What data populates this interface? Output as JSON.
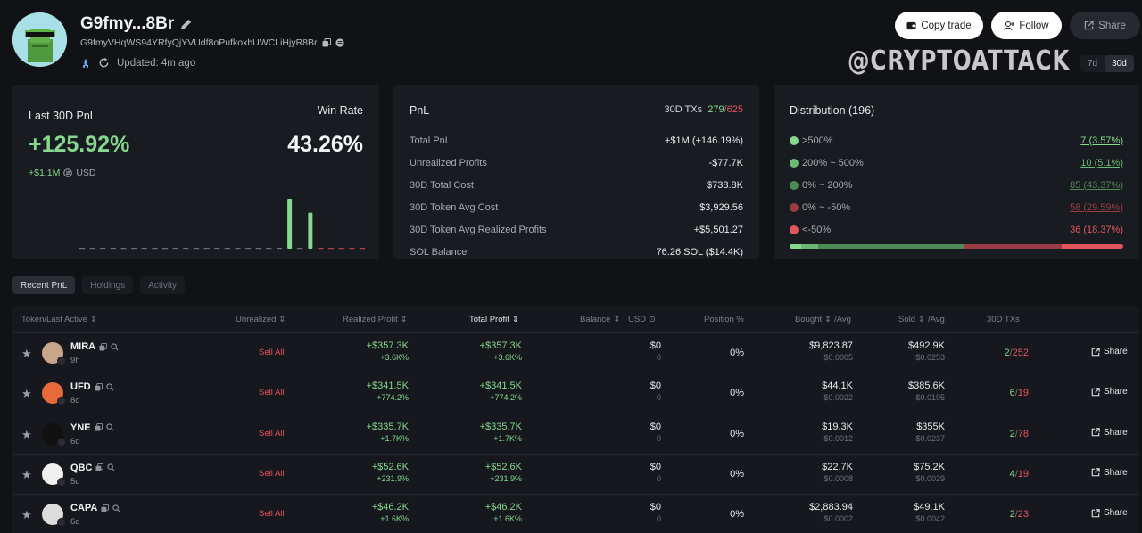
{
  "profile": {
    "display_name": "G9fmy...8Br",
    "address": "G9fmyVHqWS94YRfyQjYVUdf8oPufkoxbUWCLiHjyR8Br",
    "updated": "Updated: 4m ago",
    "avatar_bg": "#a9dfe6"
  },
  "actions": {
    "copy_trade": "Copy trade",
    "follow": "Follow",
    "share": "Share"
  },
  "watermark": "@CRYPTOATTACK",
  "range": {
    "options": [
      "7d",
      "30d"
    ],
    "active": "30d"
  },
  "summary": {
    "title": "Last 30D PnL",
    "pnl_pct": "+125.92%",
    "pnl_usd": "+$1.1M",
    "usd_label": "USD",
    "winrate_label": "Win Rate",
    "winrate": "43.26%",
    "daily_bars": [
      0,
      0,
      0,
      0,
      0,
      0,
      0,
      0,
      0,
      0,
      0,
      0,
      0,
      0,
      0,
      0,
      0,
      0,
      0,
      0,
      1.0,
      0,
      0.72,
      0,
      0,
      0,
      0,
      0
    ]
  },
  "pnl_card": {
    "title": "PnL",
    "tx_label": "30D TXs",
    "tx_win": "279",
    "tx_sep": "/",
    "tx_loss": "625",
    "rows": [
      {
        "label": "Total PnL",
        "value": "+$1M (+146.19%)",
        "tone": "g"
      },
      {
        "label": "Unrealized Profits",
        "value": "-$77.7K",
        "tone": "r"
      },
      {
        "label": "30D Total Cost",
        "value": "$738.8K",
        "tone": ""
      },
      {
        "label": "30D Token Avg Cost",
        "value": "$3,929.56",
        "tone": ""
      },
      {
        "label": "30D Token Avg Realized Profits",
        "value": "+$5,501.27",
        "tone": "g"
      },
      {
        "label": "SOL Balance",
        "value": "76.26 SOL ($14.4K)",
        "tone": ""
      }
    ]
  },
  "distribution": {
    "title": "Distribution (196)",
    "rows": [
      {
        "label": ">500%",
        "value": "7 (3.57%)",
        "color": "#86d88f",
        "pct": 3.57
      },
      {
        "label": "200% ~ 500%",
        "value": "10 (5.1%)",
        "color": "#6ab874",
        "pct": 5.1
      },
      {
        "label": "0% ~ 200%",
        "value": "85 (43.37%)",
        "color": "#4d8a55",
        "pct": 43.37
      },
      {
        "label": "0% ~ -50%",
        "value": "58 (29.59%)",
        "color": "#9b3c44",
        "pct": 29.59
      },
      {
        "label": "<-50%",
        "value": "36 (18.37%)",
        "color": "#e2555f",
        "pct": 18.37
      }
    ]
  },
  "tabs": [
    "Recent PnL",
    "Holdings",
    "Activity"
  ],
  "active_tab": "Recent PnL",
  "table": {
    "headers": {
      "token": "Token/Last Active",
      "unrealized": "Unrealized",
      "realized": "Realized Profit",
      "total": "Total Profit",
      "balance": "Balance",
      "usd": "USD",
      "position": "Position %",
      "bought": "Bought",
      "bought_avg": "/Avg",
      "sold": "Sold",
      "sold_avg": "/Avg",
      "txs": "30D TXs"
    },
    "sell_all": "Sell All",
    "share": "Share",
    "rows": [
      {
        "symbol": "MIRA",
        "age": "9h",
        "realized": "+$357.3K",
        "realized_pct": "+3.6K%",
        "total": "+$357.3K",
        "total_pct": "+3.6K%",
        "balance": "$0",
        "balance_sub": "0",
        "position": "0%",
        "bought": "$9,823.87",
        "bought_avg": "$0.0005",
        "sold": "$492.9K",
        "sold_avg": "$0.0253",
        "tx_win": "2",
        "tx_loss": "252",
        "avatar": "#c9a58a"
      },
      {
        "symbol": "UFD",
        "age": "8d",
        "realized": "+$341.5K",
        "realized_pct": "+774.2%",
        "total": "+$341.5K",
        "total_pct": "+774.2%",
        "balance": "$0",
        "balance_sub": "0",
        "position": "0%",
        "bought": "$44.1K",
        "bought_avg": "$0.0022",
        "sold": "$385.6K",
        "sold_avg": "$0.0195",
        "tx_win": "6",
        "tx_loss": "19",
        "avatar": "#e86a3a"
      },
      {
        "symbol": "YNE",
        "age": "6d",
        "realized": "+$335.7K",
        "realized_pct": "+1.7K%",
        "total": "+$335.7K",
        "total_pct": "+1.7K%",
        "balance": "$0",
        "balance_sub": "0",
        "position": "0%",
        "bought": "$19.3K",
        "bought_avg": "$0.0012",
        "sold": "$355K",
        "sold_avg": "$0.0237",
        "tx_win": "2",
        "tx_loss": "78",
        "avatar": "#111111"
      },
      {
        "symbol": "QBC",
        "age": "5d",
        "realized": "+$52.6K",
        "realized_pct": "+231.9%",
        "total": "+$52.6K",
        "total_pct": "+231.9%",
        "balance": "$0",
        "balance_sub": "0",
        "position": "0%",
        "bought": "$22.7K",
        "bought_avg": "$0.0008",
        "sold": "$75.2K",
        "sold_avg": "$0.0029",
        "tx_win": "4",
        "tx_loss": "19",
        "avatar": "#f0f0f0"
      },
      {
        "symbol": "CAPA",
        "age": "6d",
        "realized": "+$46.2K",
        "realized_pct": "+1.6K%",
        "total": "+$46.2K",
        "total_pct": "+1.6K%",
        "balance": "$0",
        "balance_sub": "0",
        "position": "0%",
        "bought": "$2,883.94",
        "bought_avg": "$0.0002",
        "sold": "$49.1K",
        "sold_avg": "$0.0042",
        "tx_win": "2",
        "tx_loss": "23",
        "avatar": "#dcdcdc"
      }
    ]
  }
}
